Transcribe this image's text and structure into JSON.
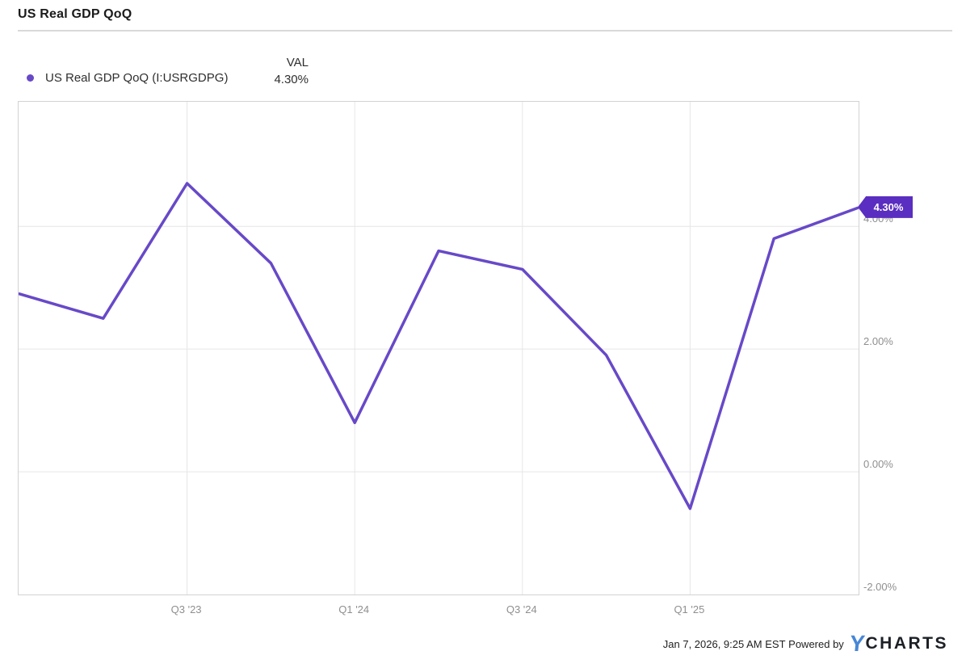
{
  "header": {
    "title": "US Real GDP QoQ"
  },
  "legend": {
    "val_header": "VAL",
    "series_label": "US Real GDP QoQ (I:USRGDPG)",
    "current_value": "4.30%"
  },
  "chart_data": {
    "type": "line",
    "title": "US Real GDP QoQ",
    "series_name": "US Real GDP QoQ (I:USRGDPG)",
    "unit": "percent",
    "x": [
      "Q1 '23",
      "Q2 '23",
      "Q3 '23",
      "Q4 '23",
      "Q1 '24",
      "Q2 '24",
      "Q3 '24",
      "Q4 '24",
      "Q1 '25",
      "Q2 '25",
      "Q3 '25"
    ],
    "values": [
      2.9,
      2.5,
      4.7,
      3.4,
      0.8,
      3.6,
      3.3,
      1.9,
      -0.6,
      3.8,
      4.3
    ],
    "ylim": [
      -2,
      6.03
    ],
    "y_ticks": [
      {
        "value": 4,
        "label": "4.00%"
      },
      {
        "value": 2,
        "label": "2.00%"
      },
      {
        "value": 0,
        "label": "0.00%"
      },
      {
        "value": -2,
        "label": "-2.00%"
      }
    ],
    "x_ticks": [
      "Q3 '23",
      "Q1 '24",
      "Q3 '24",
      "Q1 '25"
    ],
    "grid": true,
    "legend_position": "top-left",
    "line_color": "#6749c8",
    "grid_color": "#e6e6e6",
    "last_value_label": "4.30%"
  },
  "badge": {
    "label": "4.30%",
    "color": "#5a2ec0"
  },
  "footer": {
    "timestamp": "Jan 7, 2026, 9:25 AM EST",
    "powered_by": "Powered by",
    "logo": {
      "y": "Y",
      "charts": "CHARTS",
      "y_color": "#4787d7"
    }
  }
}
